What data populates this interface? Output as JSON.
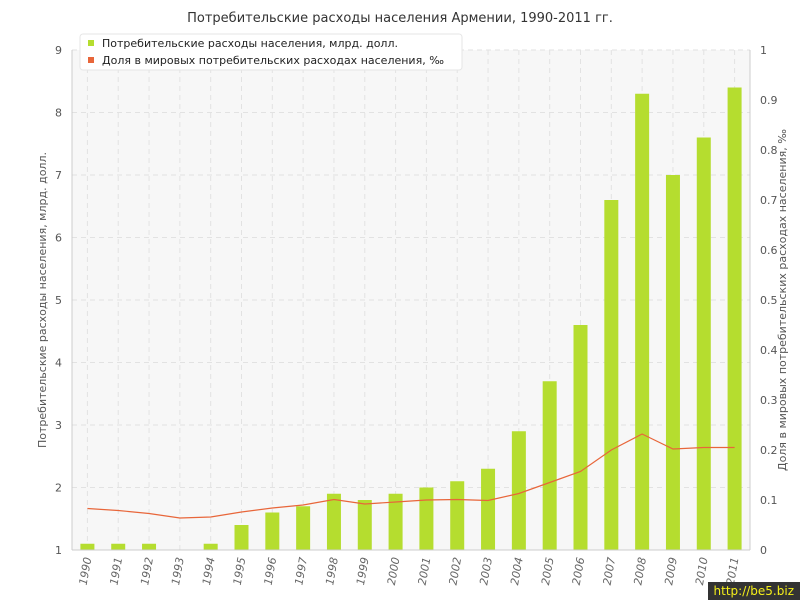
{
  "chart_data": {
    "type": "bar",
    "title": "Потребительские расходы населения Армении, 1990-2011 гг.",
    "categories": [
      "1990",
      "1991",
      "1992",
      "1993",
      "1994",
      "1995",
      "1996",
      "1997",
      "1998",
      "1999",
      "2000",
      "2001",
      "2002",
      "2003",
      "2004",
      "2005",
      "2006",
      "2007",
      "2008",
      "2009",
      "2010",
      "2011"
    ],
    "series": [
      {
        "name": "Потребительские расходы населения, млрд. долл.",
        "type": "bar",
        "axis": "left",
        "color": "#b5dd2f",
        "values": [
          1.1,
          1.1,
          1.1,
          1.0,
          1.1,
          1.4,
          1.6,
          1.7,
          1.9,
          1.8,
          1.9,
          2.0,
          2.1,
          2.3,
          2.9,
          3.7,
          4.6,
          6.6,
          8.3,
          7.0,
          7.6,
          8.4
        ]
      },
      {
        "name": "Доля в мировых потребительских расходах населения, ‰",
        "type": "line",
        "axis": "right",
        "color": "#e8663a",
        "values": [
          0.083,
          0.079,
          0.073,
          0.064,
          0.066,
          0.076,
          0.084,
          0.09,
          0.101,
          0.092,
          0.096,
          0.1,
          0.101,
          0.099,
          0.113,
          0.135,
          0.157,
          0.2,
          0.232,
          0.202,
          0.205,
          0.205
        ]
      }
    ],
    "ylabel": "Потребительские расходы населения, млрд. долл.",
    "y2label": "Доля в мировых потребительских расходах населения, ‰",
    "xlabel": "",
    "ylim": [
      1,
      9
    ],
    "y2lim": [
      0,
      1
    ],
    "yticks": [
      "1",
      "2",
      "3",
      "4",
      "5",
      "6",
      "7",
      "8",
      "9"
    ],
    "y2ticks": [
      "0",
      "0.1",
      "0.2",
      "0.3",
      "0.4",
      "0.5",
      "0.6",
      "0.7",
      "0.8",
      "0.9",
      "1"
    ],
    "grid": true,
    "legend_position": "top-left"
  },
  "watermark": "http://be5.biz"
}
